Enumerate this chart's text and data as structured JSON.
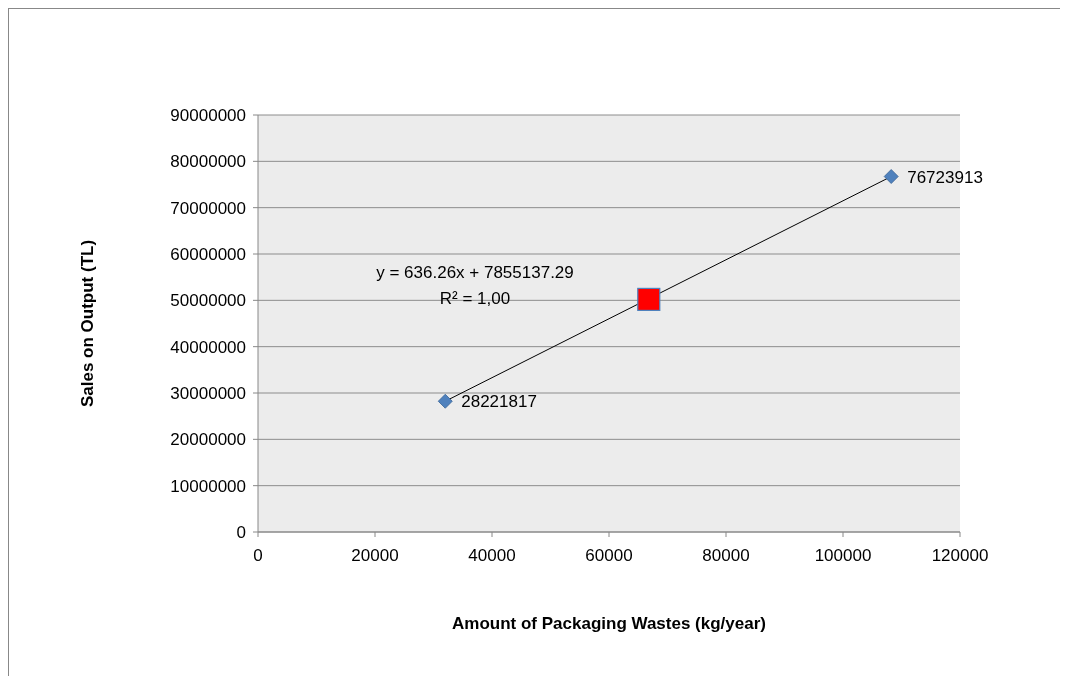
{
  "chart_data": {
    "type": "scatter",
    "xlabel": "Amount of Packaging Wastes (kg/year)",
    "ylabel": "Sales on Output (TL)",
    "xlim": [
      0,
      120000
    ],
    "xticks": [
      0,
      20000,
      40000,
      60000,
      80000,
      100000,
      120000
    ],
    "ylim": [
      0,
      90000000
    ],
    "yticks": [
      0,
      10000000,
      20000000,
      30000000,
      40000000,
      50000000,
      60000000,
      70000000,
      80000000,
      90000000
    ],
    "grid": "y",
    "series": [
      {
        "type": "line",
        "color": "#000000",
        "x": [
          32010,
          108240
        ],
        "values": [
          28221817,
          76723913
        ],
        "line_style": "solid",
        "marker": "none"
      },
      {
        "color": "#4f81bd",
        "x": [
          32010,
          108240
        ],
        "values": [
          28221817,
          76723913
        ],
        "marker": "diamond",
        "value_labels": [
          "28221817",
          "76723913"
        ]
      },
      {
        "color": "#ff0000",
        "x": [
          66800
        ],
        "values": [
          50200000
        ],
        "marker": "square"
      }
    ],
    "annotations": [
      "y = 636.26x + 7855137.29",
      "R² = 1,00"
    ]
  }
}
